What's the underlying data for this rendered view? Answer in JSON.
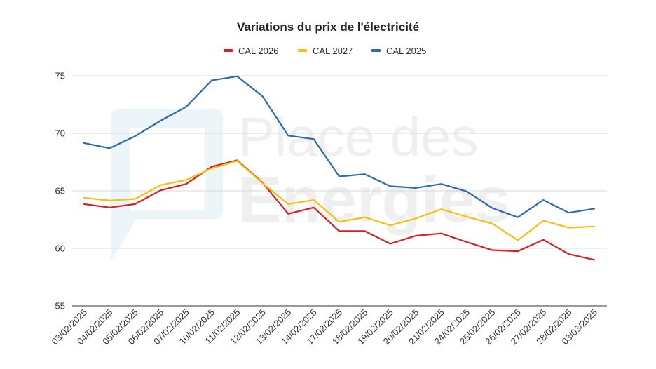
{
  "chart_data": {
    "type": "line",
    "title": "Variations du prix de l'électricité",
    "xlabel": "",
    "ylabel": "",
    "categories": [
      "03/02/2025",
      "04/02/2025",
      "05/02/2025",
      "06/02/2025",
      "07/02/2025",
      "10/02/2025",
      "11/02/2025",
      "12/02/2025",
      "13/02/2025",
      "14/02/2025",
      "17/02/2025",
      "18/02/2025",
      "19/02/2025",
      "20/02/2025",
      "21/02/2025",
      "24/02/2025",
      "25/02/2025",
      "26/02/2025",
      "27/02/2025",
      "28/02/2025",
      "03/03/2025"
    ],
    "series": [
      {
        "name": "CAL 2026",
        "color": "#d81f26",
        "values": [
          63.85,
          63.55,
          63.85,
          65.05,
          65.6,
          67.1,
          67.65,
          65.7,
          63.0,
          63.55,
          61.5,
          61.5,
          60.4,
          61.1,
          61.3,
          60.55,
          59.85,
          59.75,
          60.75,
          59.5,
          59.0
        ]
      },
      {
        "name": "CAL 2027",
        "color": "#f6bf0f",
        "values": [
          64.4,
          64.15,
          64.3,
          65.5,
          65.95,
          66.95,
          67.6,
          65.65,
          63.85,
          64.2,
          62.3,
          62.7,
          62.0,
          62.6,
          63.4,
          62.75,
          62.15,
          60.7,
          62.4,
          61.8,
          61.9
        ]
      },
      {
        "name": "CAL 2025",
        "color": "#2e6ba8",
        "values": [
          69.15,
          68.7,
          69.75,
          71.1,
          72.3,
          74.6,
          74.95,
          73.2,
          69.8,
          69.5,
          66.25,
          66.45,
          65.4,
          65.25,
          65.6,
          64.95,
          63.5,
          62.7,
          64.2,
          63.1,
          63.45
        ]
      }
    ],
    "ylim": [
      55,
      75
    ],
    "yticks": [
      55,
      60,
      65,
      70,
      75
    ],
    "grid": true,
    "legend": "top"
  },
  "watermark": {
    "line1": "Place des",
    "line2": "Energies"
  },
  "colors": {
    "grid": "#d9d9d9",
    "axis": "#333333",
    "watermark": "#eef5f8"
  }
}
